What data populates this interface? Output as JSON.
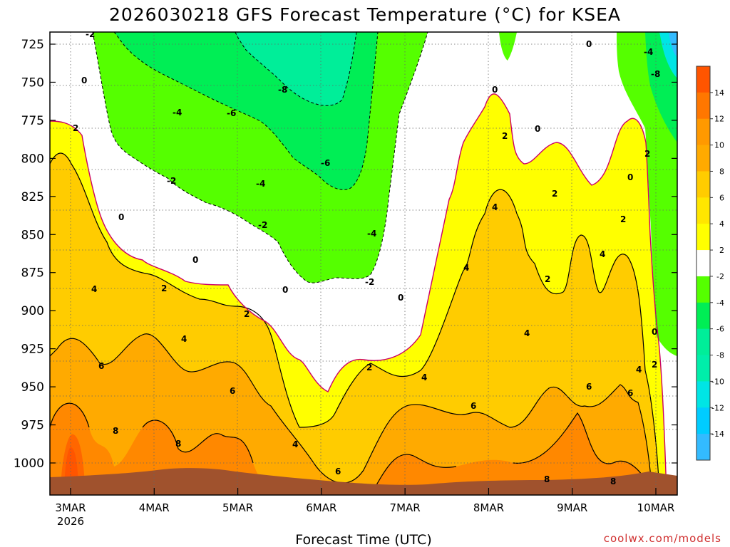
{
  "title": "2026030218 GFS Forecast Temperature (°C) for KSEA",
  "source": "coolwx.com/models",
  "chart_data": {
    "type": "heatmap",
    "title": "2026030218 GFS Forecast Temperature (°C) for KSEA",
    "xlabel": "Forecast Time (UTC)",
    "ylabel": "",
    "y_axis": {
      "ticks": [
        725,
        750,
        775,
        800,
        825,
        850,
        875,
        900,
        925,
        950,
        975,
        1000
      ],
      "range": [
        1012,
        721
      ],
      "inverted": true,
      "units": "hPa"
    },
    "x_axis": {
      "ticks": [
        {
          "label": "3MAR",
          "sublabel": "2026",
          "day": 0
        },
        {
          "label": "4MAR",
          "day": 1
        },
        {
          "label": "5MAR",
          "day": 2
        },
        {
          "label": "6MAR",
          "day": 3
        },
        {
          "label": "7MAR",
          "day": 4
        },
        {
          "label": "8MAR",
          "day": 5
        },
        {
          "label": "9MAR",
          "day": 6
        },
        {
          "label": "10MAR",
          "day": 7
        }
      ],
      "range_days": [
        -0.25,
        7.25
      ]
    },
    "grid": true,
    "colorbar": {
      "position": "right",
      "levels": [
        14,
        12,
        10,
        8,
        6,
        4,
        2,
        -2,
        -4,
        -6,
        -8,
        -10,
        -12,
        -14
      ],
      "colors": [
        "#ff5500",
        "#ff7700",
        "#ff9900",
        "#ffaa00",
        "#ffcc00",
        "#ffe600",
        "#ffff00",
        "#ffffff",
        "#55ff00",
        "#00ee55",
        "#00ee99",
        "#00eeaa",
        "#00e5e5",
        "#00ccff",
        "#33bbff"
      ]
    },
    "isotherms": [
      {
        "temp": 8,
        "label": "8"
      },
      {
        "temp": 6,
        "label": "6"
      },
      {
        "temp": 4,
        "label": "4"
      },
      {
        "temp": 2,
        "label": "2"
      },
      {
        "temp": 0,
        "label": "0"
      },
      {
        "temp": -2,
        "label": "-2"
      },
      {
        "temp": -4,
        "label": "-4"
      },
      {
        "temp": -6,
        "label": "-6"
      },
      {
        "temp": -8,
        "label": "-8"
      }
    ]
  }
}
